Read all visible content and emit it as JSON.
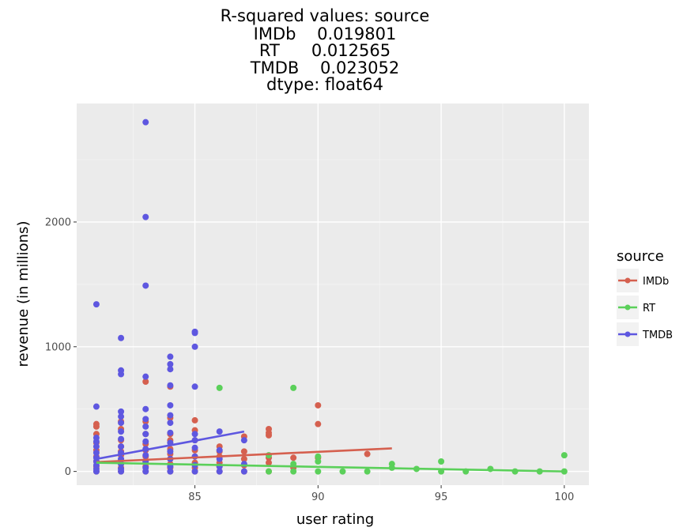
{
  "chart_data": {
    "type": "scatter",
    "title_lines": [
      "R-squared values: source",
      "IMDb    0.019801",
      "RT      0.012565",
      "TMDB    0.023052",
      "dtype: float64"
    ],
    "xlabel": "user rating",
    "ylabel": "revenue (in millions)",
    "xlim": [
      80.2,
      101.0
    ],
    "ylim": [
      -110,
      2950
    ],
    "x_ticks": [
      85,
      90,
      95,
      100
    ],
    "y_ticks": [
      0,
      1000,
      2000
    ],
    "grid": true,
    "legend_title": "source",
    "legend_position": "right",
    "series": [
      {
        "name": "IMDb",
        "color": "#d5604f",
        "points": [
          [
            81,
            0
          ],
          [
            81,
            40
          ],
          [
            81,
            80
          ],
          [
            81,
            120
          ],
          [
            81,
            170
          ],
          [
            81,
            230
          ],
          [
            81,
            300
          ],
          [
            81,
            360
          ],
          [
            81,
            380
          ],
          [
            82,
            0
          ],
          [
            82,
            30
          ],
          [
            82,
            60
          ],
          [
            82,
            90
          ],
          [
            82,
            130
          ],
          [
            82,
            160
          ],
          [
            82,
            200
          ],
          [
            82,
            250
          ],
          [
            82,
            340
          ],
          [
            82,
            400
          ],
          [
            83,
            0
          ],
          [
            83,
            40
          ],
          [
            83,
            80
          ],
          [
            83,
            120
          ],
          [
            83,
            170
          ],
          [
            83,
            220
          ],
          [
            83,
            300
          ],
          [
            83,
            400
          ],
          [
            83,
            720
          ],
          [
            84,
            0
          ],
          [
            84,
            30
          ],
          [
            84,
            60
          ],
          [
            84,
            100
          ],
          [
            84,
            140
          ],
          [
            84,
            180
          ],
          [
            84,
            250
          ],
          [
            84,
            300
          ],
          [
            84,
            430
          ],
          [
            84,
            680
          ],
          [
            85,
            0
          ],
          [
            85,
            30
          ],
          [
            85,
            70
          ],
          [
            85,
            120
          ],
          [
            85,
            170
          ],
          [
            85,
            250
          ],
          [
            85,
            330
          ],
          [
            85,
            410
          ],
          [
            86,
            0
          ],
          [
            86,
            40
          ],
          [
            86,
            70
          ],
          [
            86,
            120
          ],
          [
            86,
            160
          ],
          [
            86,
            200
          ],
          [
            87,
            0
          ],
          [
            87,
            50
          ],
          [
            87,
            100
          ],
          [
            87,
            160
          ],
          [
            87,
            280
          ],
          [
            88,
            0
          ],
          [
            88,
            70
          ],
          [
            88,
            110
          ],
          [
            88,
            290
          ],
          [
            88,
            310
          ],
          [
            88,
            340
          ],
          [
            89,
            30
          ],
          [
            89,
            110
          ],
          [
            90,
            110
          ],
          [
            90,
            380
          ],
          [
            90,
            530
          ],
          [
            92,
            140
          ]
        ],
        "fit": {
          "x": [
            81,
            93
          ],
          "y": [
            75,
            185
          ]
        }
      },
      {
        "name": "RT",
        "color": "#5bd05a",
        "points": [
          [
            86,
            670
          ],
          [
            88,
            130
          ],
          [
            88,
            0
          ],
          [
            89,
            670
          ],
          [
            89,
            0
          ],
          [
            89,
            60
          ],
          [
            90,
            0
          ],
          [
            90,
            80
          ],
          [
            90,
            120
          ],
          [
            91,
            0
          ],
          [
            92,
            0
          ],
          [
            93,
            30
          ],
          [
            93,
            60
          ],
          [
            94,
            20
          ],
          [
            95,
            0
          ],
          [
            95,
            80
          ],
          [
            96,
            0
          ],
          [
            97,
            20
          ],
          [
            98,
            0
          ],
          [
            99,
            0
          ],
          [
            100,
            0
          ],
          [
            100,
            130
          ]
        ],
        "fit": {
          "x": [
            81,
            100
          ],
          "y": [
            70,
            0
          ]
        }
      },
      {
        "name": "TMDB",
        "color": "#5e57e0",
        "points": [
          [
            81,
            0
          ],
          [
            81,
            20
          ],
          [
            81,
            50
          ],
          [
            81,
            80
          ],
          [
            81,
            110
          ],
          [
            81,
            150
          ],
          [
            81,
            200
          ],
          [
            81,
            240
          ],
          [
            81,
            270
          ],
          [
            81,
            520
          ],
          [
            81,
            1340
          ],
          [
            82,
            0
          ],
          [
            82,
            20
          ],
          [
            82,
            60
          ],
          [
            82,
            100
          ],
          [
            82,
            150
          ],
          [
            82,
            200
          ],
          [
            82,
            260
          ],
          [
            82,
            320
          ],
          [
            82,
            390
          ],
          [
            82,
            440
          ],
          [
            82,
            480
          ],
          [
            82,
            780
          ],
          [
            82,
            810
          ],
          [
            82,
            1070
          ],
          [
            83,
            0
          ],
          [
            83,
            30
          ],
          [
            83,
            80
          ],
          [
            83,
            130
          ],
          [
            83,
            180
          ],
          [
            83,
            240
          ],
          [
            83,
            300
          ],
          [
            83,
            360
          ],
          [
            83,
            420
          ],
          [
            83,
            500
          ],
          [
            83,
            760
          ],
          [
            83,
            1490
          ],
          [
            83,
            2040
          ],
          [
            83,
            2800
          ],
          [
            84,
            0
          ],
          [
            84,
            40
          ],
          [
            84,
            100
          ],
          [
            84,
            160
          ],
          [
            84,
            230
          ],
          [
            84,
            310
          ],
          [
            84,
            390
          ],
          [
            84,
            450
          ],
          [
            84,
            530
          ],
          [
            84,
            690
          ],
          [
            84,
            820
          ],
          [
            84,
            860
          ],
          [
            84,
            920
          ],
          [
            85,
            0
          ],
          [
            85,
            50
          ],
          [
            85,
            120
          ],
          [
            85,
            190
          ],
          [
            85,
            250
          ],
          [
            85,
            300
          ],
          [
            85,
            680
          ],
          [
            85,
            1000
          ],
          [
            85,
            1110
          ],
          [
            85,
            1120
          ],
          [
            86,
            0
          ],
          [
            86,
            40
          ],
          [
            86,
            100
          ],
          [
            86,
            170
          ],
          [
            86,
            320
          ],
          [
            87,
            0
          ],
          [
            87,
            60
          ],
          [
            87,
            250
          ]
        ],
        "fit": {
          "x": [
            81,
            87
          ],
          "y": [
            100,
            320
          ]
        }
      }
    ]
  }
}
